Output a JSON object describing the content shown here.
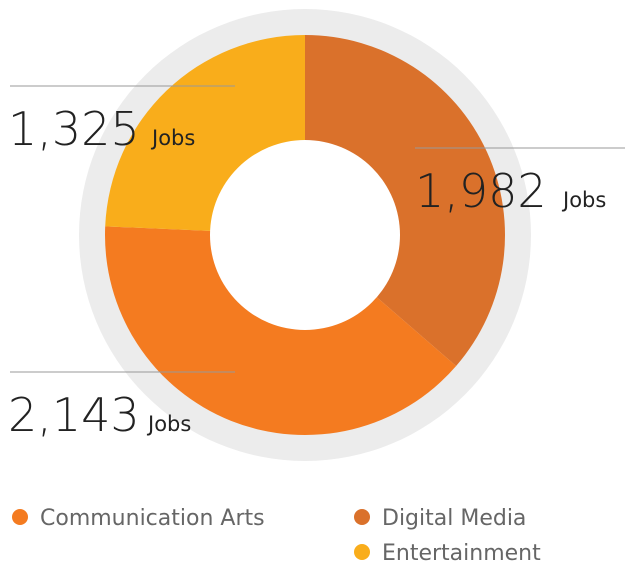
{
  "chart_data": {
    "type": "donut",
    "categories": [
      "Digital Media",
      "Communication Arts",
      "Entertainment"
    ],
    "values": [
      1982,
      2143,
      1325
    ],
    "value_labels": [
      "1,982",
      "2,143",
      "1,325"
    ],
    "unit": "Jobs",
    "colors": [
      "#da712b",
      "#f47b20",
      "#f9ad1b"
    ]
  }
}
